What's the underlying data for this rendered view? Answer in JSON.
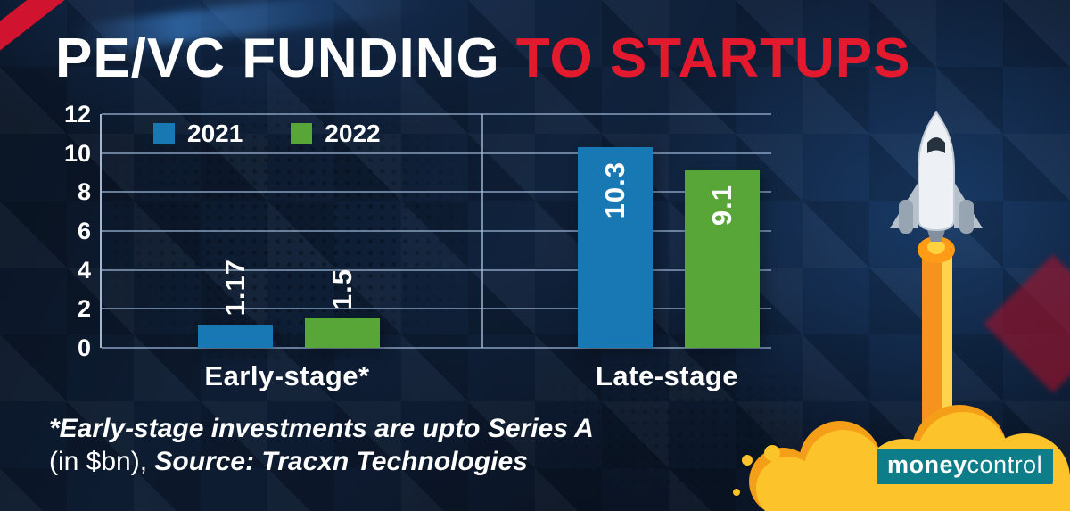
{
  "title": {
    "white": "PE/VC FUNDING",
    "red": "TO STARTUPS"
  },
  "chart_data": {
    "type": "bar",
    "title": "PE/VC FUNDING TO STARTUPS",
    "categories": [
      "Early-stage*",
      "Late-stage"
    ],
    "series": [
      {
        "name": "2021",
        "color": "#1878b4",
        "values": [
          1.17,
          10.3
        ],
        "labels": [
          "1.17",
          "10.3"
        ]
      },
      {
        "name": "2022",
        "color": "#58a638",
        "values": [
          1.5,
          9.1
        ],
        "labels": [
          "1.5",
          "9.1"
        ]
      }
    ],
    "ylim": [
      0,
      12
    ],
    "yticks": [
      0,
      2,
      4,
      6,
      8,
      10,
      12
    ],
    "grid": true,
    "legend_position": "top-left-inside",
    "unit": "$bn"
  },
  "footnote": {
    "line1": "*Early-stage investments are upto Series A",
    "line2_prefix": "(in $bn), ",
    "line2_source": "Source: Tracxn Technologies"
  },
  "logo": {
    "money": "money",
    "control": "control"
  },
  "colors": {
    "accent_red": "#e31a2d",
    "bar_blue": "#1878b4",
    "bar_green": "#58a638",
    "logo_teal": "#0d7e89",
    "background_navy": "#0e1e36"
  }
}
